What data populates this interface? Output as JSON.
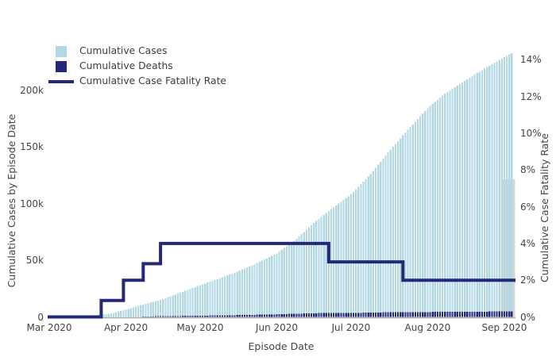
{
  "figure": {
    "background": "#ffffff",
    "text_color": "#444444",
    "axis_line_color": "#ababab"
  },
  "chart_data": {
    "type": "bar",
    "subtype": "daily cumulative bars with overlaid step line on secondary axis",
    "title": "",
    "xlabel": "Episode Date",
    "x_ticks": [
      "Mar 2020",
      "Apr 2020",
      "May 2020",
      "Jun 2020",
      "Jul 2020",
      "Aug 2020",
      "Sep 2020"
    ],
    "x_tick_days": [
      0,
      31,
      61,
      92,
      122,
      153,
      184
    ],
    "x_start_date": "2020-03-01",
    "total_days": 187,
    "yaxis_left": {
      "label": "Cumulative Cases by Episode Date",
      "ticks": [
        "0",
        "50k",
        "100k",
        "150k",
        "200k"
      ],
      "tick_values": [
        0,
        50000,
        100000,
        150000,
        200000
      ],
      "range_max": 233000
    },
    "yaxis_right": {
      "label": "Cumulative Case Fatality Rate",
      "ticks": [
        "0%",
        "2%",
        "4%",
        "6%",
        "8%",
        "10%",
        "12%",
        "14%"
      ],
      "tick_values": [
        0,
        2,
        4,
        6,
        8,
        10,
        12,
        14
      ]
    },
    "series": [
      {
        "name": "Cumulative Cases",
        "type": "bar",
        "axis": "left",
        "color": "#b2d8e4",
        "anchors": {
          "days": [
            0,
            8,
            12,
            16,
            21,
            26,
            31,
            38,
            45,
            52,
            61,
            69,
            76,
            84,
            92,
            99,
            107,
            114,
            122,
            130,
            137,
            145,
            153,
            160,
            168,
            176,
            184,
            187
          ],
          "values": [
            0,
            100,
            400,
            900,
            1800,
            3600,
            6500,
            11000,
            15000,
            20500,
            28000,
            34000,
            40000,
            47500,
            56000,
            67000,
            83000,
            95000,
            108000,
            126000,
            145000,
            165000,
            184000,
            197000,
            208000,
            219000,
            229000,
            232500
          ]
        }
      },
      {
        "name": "Cumulative Deaths",
        "type": "bar",
        "axis": "left",
        "color": "#232879",
        "anchors": {
          "days": [
            0,
            21,
            30,
            38,
            45,
            61,
            76,
            92,
            107,
            122,
            137,
            153,
            168,
            184,
            187
          ],
          "values": [
            0,
            20,
            140,
            330,
            620,
            1100,
            1600,
            2300,
            3300,
            3500,
            4150,
            4350,
            4600,
            4800,
            4850
          ]
        }
      },
      {
        "name": "Cumulative Case Fatality Rate",
        "type": "step-line",
        "axis": "right",
        "color": "#232879",
        "line_width": 4,
        "steps_days": [
          0,
          21,
          30,
          38,
          45,
          113,
          143
        ],
        "steps_dates": [
          "2020-03-01",
          "2020-03-22",
          "2020-03-31",
          "2020-04-08",
          "2020-04-15",
          "2020-06-22",
          "2020-07-22"
        ],
        "steps_rates_pct": [
          0,
          0.9,
          2,
          2.9,
          4,
          3,
          2
        ]
      }
    ],
    "highlight_band": {
      "description": "grey band behind most recent bars at right edge of plot",
      "top_value": 121500,
      "color": "#d7d7d7"
    },
    "legend_position": "top-left",
    "grid": false
  }
}
